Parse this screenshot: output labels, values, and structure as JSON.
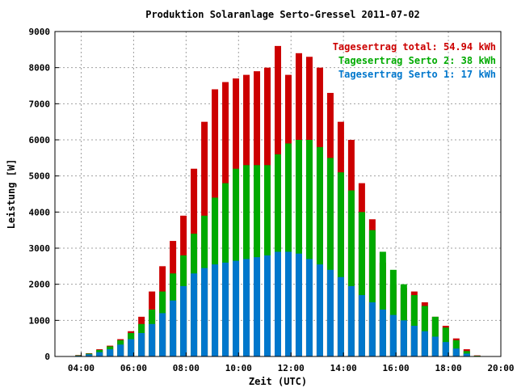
{
  "chart_data": {
    "type": "bar",
    "title": "Produktion Solaranlage Serto-Gressel 2011-07-02",
    "xlabel": "Zeit (UTC)",
    "ylabel": "Leistung [W]",
    "xlim": [
      3.0,
      20.0
    ],
    "ylim": [
      0,
      9000
    ],
    "x_ticks": [
      4,
      6,
      8,
      10,
      12,
      14,
      16,
      18,
      20
    ],
    "x_tick_labels": [
      "04:00",
      "06:00",
      "08:00",
      "10:00",
      "12:00",
      "14:00",
      "16:00",
      "18:00",
      "20:00"
    ],
    "y_ticks": [
      0,
      1000,
      2000,
      3000,
      4000,
      5000,
      6000,
      7000,
      8000,
      9000
    ],
    "y_tick_labels": [
      "0",
      "1000",
      "2000",
      "3000",
      "4000",
      "5000",
      "6000",
      "7000",
      "8000",
      "9000"
    ],
    "grid": true,
    "legend_position": "top-right",
    "legend": [
      {
        "label": "Tagesertrag total: 54.94 kWh",
        "color": "#cc0000"
      },
      {
        "label": "Tagesertrag Serto 2: 38 kWh",
        "color": "#00aa00"
      },
      {
        "label": "Tagesertrag Serto 1: 17 kWh",
        "color": "#0077cc"
      }
    ],
    "series": [
      {
        "name": "Serto 1",
        "color": "#0077cc",
        "x": [
          3.9,
          4.3,
          4.7,
          5.1,
          5.5,
          5.9,
          6.3,
          6.7,
          7.1,
          7.5,
          7.9,
          8.3,
          8.7,
          9.1,
          9.5,
          9.9,
          10.3,
          10.7,
          11.1,
          11.5,
          11.9,
          12.3,
          12.7,
          13.1,
          13.5,
          13.9,
          14.3,
          14.7,
          15.1,
          15.5,
          15.9,
          16.3,
          16.7,
          17.1,
          17.5,
          17.9,
          18.3,
          18.7,
          19.1
        ],
        "values": [
          20,
          60,
          120,
          200,
          330,
          480,
          650,
          900,
          1200,
          1550,
          1950,
          2300,
          2450,
          2550,
          2600,
          2650,
          2700,
          2750,
          2800,
          2900,
          2900,
          2850,
          2700,
          2550,
          2400,
          2200,
          1950,
          1700,
          1500,
          1300,
          1150,
          1000,
          850,
          700,
          550,
          400,
          220,
          80,
          10
        ]
      },
      {
        "name": "Serto 2",
        "color": "#00aa00",
        "x": [
          3.9,
          4.3,
          4.7,
          5.1,
          5.5,
          5.9,
          6.3,
          6.7,
          7.1,
          7.5,
          7.9,
          8.3,
          8.7,
          9.1,
          9.5,
          9.9,
          10.3,
          10.7,
          11.1,
          11.5,
          11.9,
          12.3,
          12.7,
          13.1,
          13.5,
          13.9,
          14.3,
          14.7,
          15.1,
          15.5,
          15.9,
          16.3,
          16.7,
          17.1,
          17.5,
          17.9,
          18.3,
          18.7,
          19.1
        ],
        "values": [
          30,
          80,
          180,
          280,
          450,
          650,
          900,
          1300,
          1800,
          2300,
          2800,
          3400,
          3900,
          4400,
          4800,
          5200,
          5300,
          5300,
          5300,
          5600,
          5900,
          6000,
          6000,
          5800,
          5500,
          5100,
          4600,
          4000,
          3500,
          2900,
          2400,
          2000,
          1700,
          1400,
          1100,
          800,
          450,
          150,
          20
        ]
      },
      {
        "name": "Total",
        "color": "#cc0000",
        "x": [
          3.9,
          4.3,
          4.7,
          5.1,
          5.5,
          5.9,
          6.3,
          6.7,
          7.1,
          7.5,
          7.9,
          8.3,
          8.7,
          9.1,
          9.5,
          9.9,
          10.3,
          10.7,
          11.1,
          11.5,
          11.9,
          12.3,
          12.7,
          13.1,
          13.5,
          13.9,
          14.3,
          14.7,
          15.1,
          15.5,
          15.9,
          16.3,
          16.7,
          17.1,
          17.5,
          17.9,
          18.3,
          18.7,
          19.1
        ],
        "values": [
          40,
          90,
          200,
          300,
          480,
          700,
          1100,
          1800,
          2500,
          3200,
          3900,
          5200,
          6500,
          7400,
          7600,
          7700,
          7800,
          7900,
          8000,
          8600,
          7800,
          8400,
          8300,
          8000,
          7300,
          6500,
          6000,
          4800,
          3800,
          2600,
          2000,
          1900,
          1800,
          1500,
          1100,
          850,
          500,
          200,
          30
        ]
      }
    ]
  }
}
